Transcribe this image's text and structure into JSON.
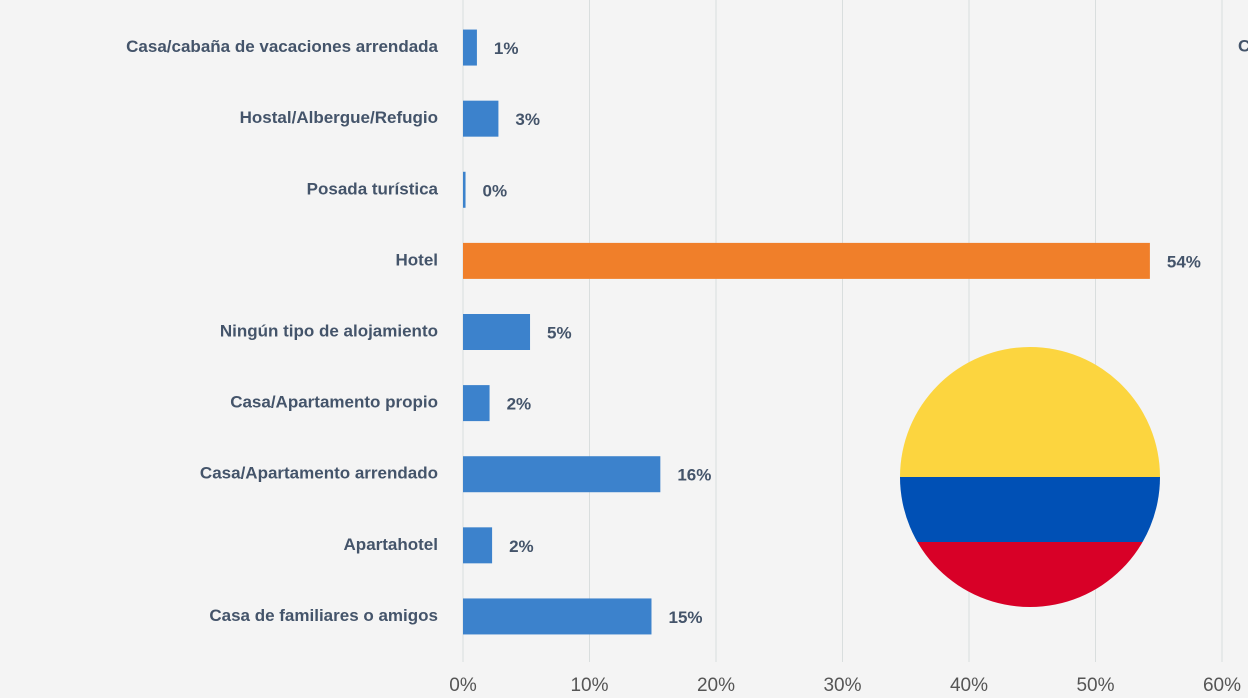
{
  "chart_data": {
    "type": "bar",
    "orientation": "horizontal",
    "annotation": "C",
    "categories": [
      "Casa/cabaña de vacaciones arrendada",
      "Hostal/Albergue/Refugio",
      "Posada turística",
      "Hotel",
      "Ningún tipo de alojamiento",
      "Casa/Apartamento propio",
      "Casa/Apartamento arrendado",
      "Apartahotel",
      "Casa de familiares o amigos"
    ],
    "values": [
      1.1,
      2.8,
      0.2,
      54.3,
      5.3,
      2.1,
      15.6,
      2.3,
      14.9
    ],
    "value_labels": [
      "1%",
      "3%",
      "0%",
      "54%",
      "5%",
      "2%",
      "16%",
      "2%",
      "15%"
    ],
    "colors": [
      "#3c82cc",
      "#3c82cc",
      "#3c82cc",
      "#f07f2a",
      "#3c82cc",
      "#3c82cc",
      "#3c82cc",
      "#3c82cc",
      "#3c82cc"
    ],
    "xlim": [
      0,
      60
    ],
    "xticks": [
      {
        "value": 0,
        "label": "0%"
      },
      {
        "value": 10,
        "label": "10%"
      },
      {
        "value": 20,
        "label": "20%"
      },
      {
        "value": 30,
        "label": "30%"
      },
      {
        "value": 40,
        "label": "40%"
      },
      {
        "value": 50,
        "label": "50%"
      },
      {
        "value": 60,
        "label": "60%"
      }
    ],
    "grid": true
  }
}
